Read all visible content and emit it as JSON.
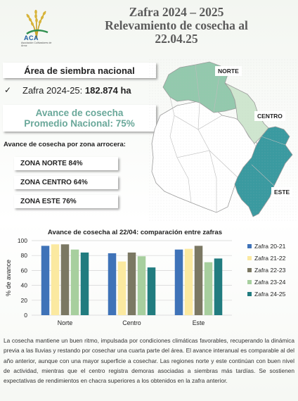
{
  "header": {
    "logo_name": "ACA",
    "logo_sub": "Asociación Cultivadores de Arroz",
    "title_line1": "Zafra 2024 – 2025",
    "title_line2": "Relevamiento de cosecha al",
    "title_line3": "22.04.25"
  },
  "area": {
    "title": "Área de siembra nacional",
    "check": "✓",
    "label": "Zafra 2024-25: ",
    "value": "182.874 ha"
  },
  "avance": {
    "line1": "Avance de cosecha",
    "line2": "Promedio Nacional: 75%"
  },
  "zonas": {
    "title": "Avance de cosecha por zona arrocera:",
    "items": [
      "ZONA NORTE 84%",
      "ZONA CENTRO 64%",
      "ZONA ESTE 76%"
    ]
  },
  "map": {
    "labels": {
      "norte": "NORTE",
      "centro": "CENTRO",
      "este": "ESTE"
    },
    "colors": {
      "norte": "#93c9ad",
      "centro": "#cfe6cf",
      "este": "#3a9aa0",
      "other": "#ffffff",
      "border": "#9a9a9a"
    }
  },
  "chart_data": {
    "type": "bar",
    "title": "Avance de cosecha al 22/04: comparación entre zafras",
    "ylabel": "% de avance",
    "xlabel": "",
    "ylim": [
      0,
      100
    ],
    "yticks": [
      0,
      20,
      40,
      60,
      80,
      100
    ],
    "grid": true,
    "legend_position": "right",
    "categories": [
      "Norte",
      "Centro",
      "Este"
    ],
    "series": [
      {
        "name": "Zafra 20-21",
        "values": [
          93,
          83,
          88
        ],
        "color": "#3f73b8"
      },
      {
        "name": "Zafra 21-22",
        "values": [
          95,
          72,
          89
        ],
        "color": "#fbe9a0"
      },
      {
        "name": "Zafra 22-23",
        "values": [
          95,
          84,
          93
        ],
        "color": "#7b7863"
      },
      {
        "name": "Zafra 23-24",
        "values": [
          88,
          79,
          71
        ],
        "color": "#a7cf9e"
      },
      {
        "name": "Zafra 24-25",
        "values": [
          84,
          64,
          76
        ],
        "color": "#217c7f"
      }
    ]
  },
  "paragraph": "La cosecha mantiene un buen ritmo, impulsada por condiciones climáticas favorables, recuperando la dinámica previa a las lluvias y restando por cosechar una cuarta parte del área. El avance interanual es comparable al del año anterior, aunque con una mayor superficie a cosechar. Las regiones norte y este continúan con buen nivel de actividad, mientras que el centro registra demoras asociadas a siembras más tardías. Se sostienen expectativas de rendimientos en chacra superiores a los obtenidos en la zafra anterior."
}
